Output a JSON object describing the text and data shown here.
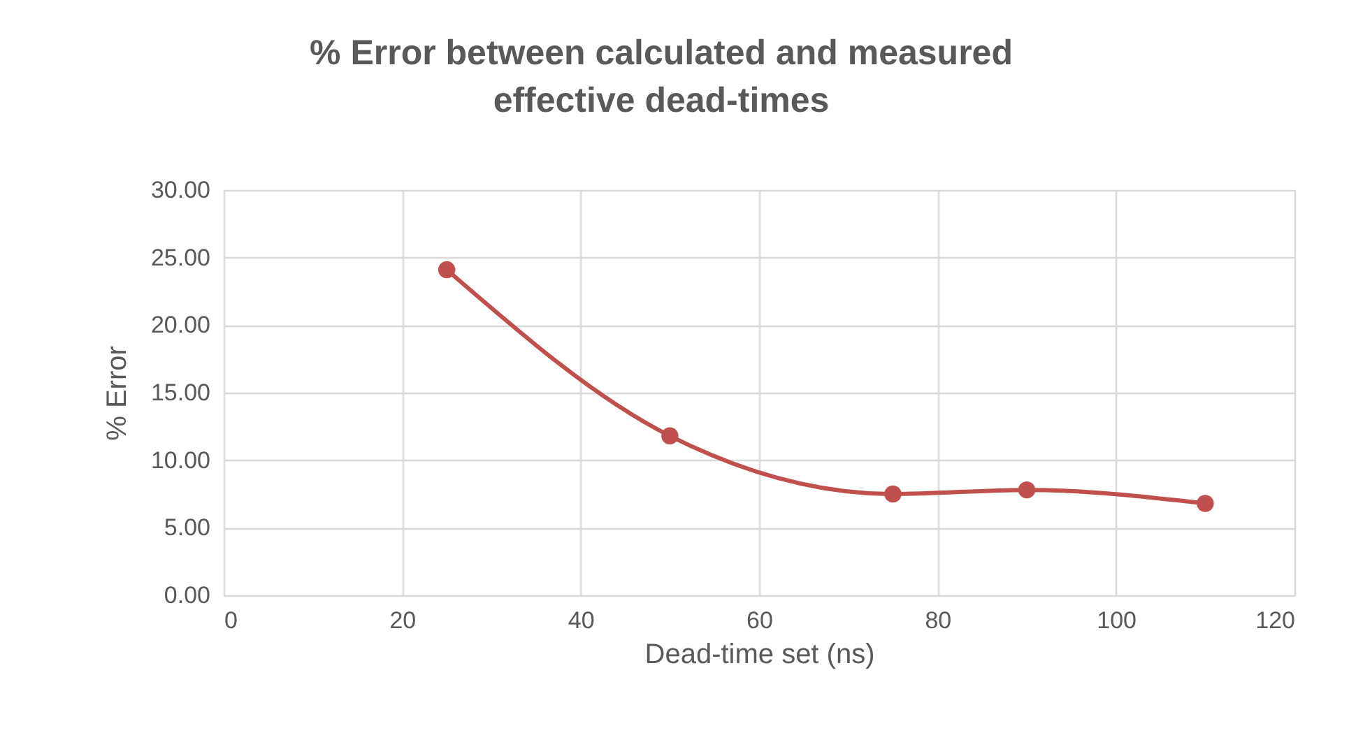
{
  "chart_data": {
    "type": "line",
    "title": "%  Error between calculated and measured effective dead-times",
    "xlabel": "Dead-time set (ns)",
    "ylabel": "% Error",
    "x": [
      25,
      50,
      75,
      90,
      110
    ],
    "series": [
      {
        "color": "#c0504d",
        "values": [
          24.1,
          11.8,
          7.5,
          7.8,
          6.8
        ]
      }
    ],
    "xlim": [
      0,
      120
    ],
    "xticks": [
      0,
      20,
      40,
      60,
      80,
      100,
      120
    ],
    "ylim": [
      0,
      30
    ],
    "yticks": [
      {
        "value": 0,
        "label": "0.00"
      },
      {
        "value": 5,
        "label": "5.00"
      },
      {
        "value": 10,
        "label": "10.00"
      },
      {
        "value": 15,
        "label": "15.00"
      },
      {
        "value": 20,
        "label": "20.00"
      },
      {
        "value": 25,
        "label": "25.00"
      },
      {
        "value": 30,
        "label": "30.00"
      }
    ],
    "grid": true,
    "marker": "circle",
    "line_style": "solid"
  }
}
